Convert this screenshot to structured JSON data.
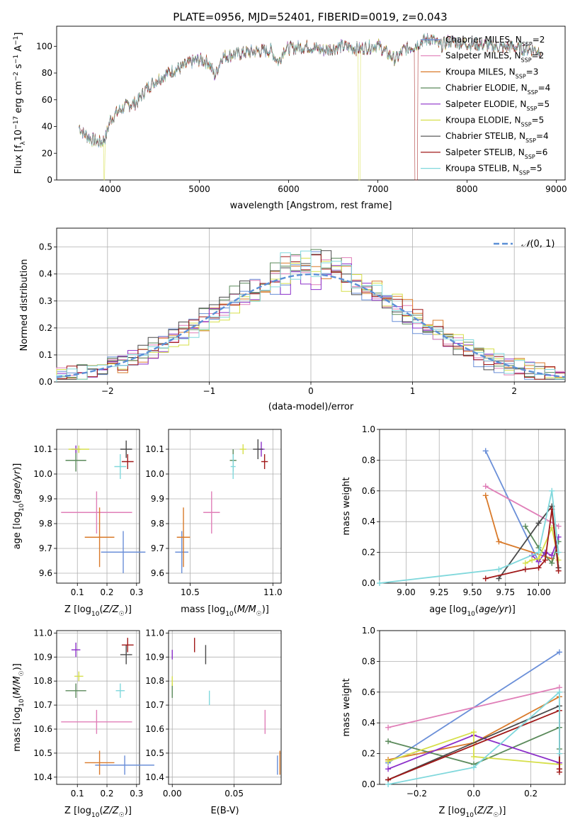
{
  "title": "PLATE=0956, MJD=52401, FIBERID=0019, z=0.043",
  "colors": {
    "chabrier_miles": "#6a8fd8",
    "salpeter_miles": "#e07fb8",
    "kroupa_miles": "#d97a2a",
    "chabrier_elodie": "#5b8a5b",
    "salpeter_elodie": "#8b2fc9",
    "kroupa_elodie": "#d6df4a",
    "chabrier_stelib": "#4a4a4a",
    "salpeter_stelib": "#a01818",
    "kroupa_stelib": "#80d8dc",
    "data": "#999999"
  },
  "legend": [
    {
      "label": "Chabrier MILES, N",
      "sub": "SSP",
      "suffix": "=2",
      "color_key": "chabrier_miles"
    },
    {
      "label": "Salpeter MILES, N",
      "sub": "SSP",
      "suffix": "=2",
      "color_key": "salpeter_miles"
    },
    {
      "label": "Kroupa MILES, N",
      "sub": "SSP",
      "suffix": "=3",
      "color_key": "kroupa_miles"
    },
    {
      "label": "Chabrier ELODIE, N",
      "sub": "SSP",
      "suffix": "=4",
      "color_key": "chabrier_elodie"
    },
    {
      "label": "Salpeter ELODIE, N",
      "sub": "SSP",
      "suffix": "=5",
      "color_key": "salpeter_elodie"
    },
    {
      "label": "Kroupa ELODIE, N",
      "sub": "SSP",
      "suffix": "=5",
      "color_key": "kroupa_elodie"
    },
    {
      "label": "Chabrier STELIB, N",
      "sub": "SSP",
      "suffix": "=4",
      "color_key": "chabrier_stelib"
    },
    {
      "label": "Salpeter STELIB, N",
      "sub": "SSP",
      "suffix": "=6",
      "color_key": "salpeter_stelib"
    },
    {
      "label": "Kroupa STELIB, N",
      "sub": "SSP",
      "suffix": "=5",
      "color_key": "kroupa_stelib"
    }
  ],
  "chart_data": [
    {
      "id": "spectrum",
      "type": "line",
      "xlabel": "wavelength [Angstrom, rest frame]",
      "ylabel": "Flux [f_λ 10^-17 erg cm^-2 s^-1 A^-1]",
      "xlim": [
        3400,
        9100
      ],
      "ylim": [
        0,
        115
      ],
      "xticks": [
        4000,
        5000,
        6000,
        7000,
        8000,
        9000
      ],
      "yticks": [
        0,
        20,
        40,
        60,
        80,
        100
      ],
      "grid": false,
      "legend_position": "right",
      "continuum": [
        [
          3650,
          40
        ],
        [
          3700,
          35
        ],
        [
          3800,
          30
        ],
        [
          3900,
          28
        ],
        [
          3950,
          32
        ],
        [
          4000,
          45
        ],
        [
          4100,
          52
        ],
        [
          4200,
          56
        ],
        [
          4300,
          58
        ],
        [
          4400,
          68
        ],
        [
          4500,
          74
        ],
        [
          4600,
          78
        ],
        [
          4700,
          82
        ],
        [
          4800,
          84
        ],
        [
          4900,
          88
        ],
        [
          5000,
          90
        ],
        [
          5100,
          88
        ],
        [
          5175,
          78
        ],
        [
          5250,
          92
        ],
        [
          5400,
          94
        ],
        [
          5600,
          96
        ],
        [
          5800,
          97
        ],
        [
          5890,
          88
        ],
        [
          5950,
          98
        ],
        [
          6200,
          100
        ],
        [
          6400,
          97
        ],
        [
          6600,
          100
        ],
        [
          6800,
          98
        ],
        [
          7000,
          101
        ],
        [
          7100,
          95
        ],
        [
          7200,
          90
        ],
        [
          7300,
          98
        ],
        [
          7400,
          100
        ],
        [
          7500,
          104
        ],
        [
          7600,
          106
        ],
        [
          7700,
          100
        ],
        [
          7800,
          104
        ],
        [
          8000,
          102
        ],
        [
          8200,
          101
        ],
        [
          8400,
          99
        ],
        [
          8500,
          100
        ],
        [
          8600,
          98
        ],
        [
          8700,
          98
        ],
        [
          8800,
          97
        ],
        [
          8830,
          97
        ]
      ],
      "dips": [
        {
          "series": "kroupa_elodie",
          "x": [
            3932,
            3938
          ]
        },
        {
          "series": "kroupa_elodie",
          "x": [
            6790,
            6798
          ]
        },
        {
          "series": "salpeter_stelib",
          "x": [
            7415,
            7425
          ]
        }
      ]
    },
    {
      "id": "residuals",
      "type": "histogram",
      "xlabel": "(data-model)/error",
      "ylabel": "Normed distribution",
      "xlim": [
        -2.5,
        2.5
      ],
      "ylim": [
        0,
        0.57
      ],
      "xticks": [
        -2,
        -1,
        0,
        1,
        2
      ],
      "yticks": [
        0.0,
        0.1,
        0.2,
        0.3,
        0.4,
        0.5
      ],
      "grid": true,
      "reference_label": "N(0,1)",
      "bin_width": 0.1
    },
    {
      "id": "age_vs_Z",
      "type": "errorbar",
      "xlabel": "Z [log10(Z/Z☉)]",
      "ylabel": "age  [log10(age/yr)]",
      "xlim": [
        0.03,
        0.31
      ],
      "ylim": [
        9.56,
        10.18
      ],
      "xticks": [
        0.1,
        0.2,
        0.3
      ],
      "yticks": [
        9.6,
        9.7,
        9.8,
        9.9,
        10.0,
        10.1
      ],
      "grid": true,
      "points": [
        {
          "series": "chabrier_miles",
          "x": 0.255,
          "xerr": 0.075,
          "y": 9.685,
          "yerr": 0.085
        },
        {
          "series": "salpeter_miles",
          "x": 0.165,
          "xerr": 0.12,
          "y": 9.845,
          "yerr": 0.085
        },
        {
          "series": "kroupa_miles",
          "x": 0.175,
          "xerr": 0.05,
          "y": 9.745,
          "yerr": 0.12
        },
        {
          "series": "chabrier_elodie",
          "x": 0.095,
          "xerr": 0.035,
          "y": 10.055,
          "yerr": 0.045
        },
        {
          "series": "salpeter_elodie",
          "x": 0.095,
          "xerr": 0.015,
          "y": 10.1,
          "yerr": 0.015
        },
        {
          "series": "kroupa_elodie",
          "x": 0.105,
          "xerr": 0.035,
          "y": 10.1,
          "yerr": 0.015
        },
        {
          "series": "chabrier_stelib",
          "x": 0.265,
          "xerr": 0.02,
          "y": 10.1,
          "yerr": 0.035
        },
        {
          "series": "salpeter_stelib",
          "x": 0.27,
          "xerr": 0.02,
          "y": 10.05,
          "yerr": 0.03
        },
        {
          "series": "kroupa_stelib",
          "x": 0.245,
          "xerr": 0.02,
          "y": 10.03,
          "yerr": 0.05
        }
      ]
    },
    {
      "id": "age_vs_mass",
      "type": "errorbar",
      "xlabel": "mass [log10(M/M☉)]",
      "ylabel": "",
      "xlim": [
        10.37,
        11.05
      ],
      "ylim": [
        9.56,
        10.18
      ],
      "xticks": [
        10.5,
        11.0
      ],
      "yticks": [
        9.6,
        9.7,
        9.8,
        9.9,
        10.0,
        10.1
      ],
      "grid": true,
      "points": [
        {
          "series": "chabrier_miles",
          "x": 10.45,
          "xerr": 0.04,
          "y": 9.685,
          "yerr": 0.085
        },
        {
          "series": "salpeter_miles",
          "x": 10.63,
          "xerr": 0.05,
          "y": 9.845,
          "yerr": 0.085
        },
        {
          "series": "kroupa_miles",
          "x": 10.46,
          "xerr": 0.04,
          "y": 9.745,
          "yerr": 0.12
        },
        {
          "series": "chabrier_elodie",
          "x": 10.76,
          "xerr": 0.02,
          "y": 10.055,
          "yerr": 0.045
        },
        {
          "series": "salpeter_elodie",
          "x": 10.93,
          "xerr": 0.02,
          "y": 10.1,
          "yerr": 0.03
        },
        {
          "series": "kroupa_elodie",
          "x": 10.82,
          "xerr": 0.02,
          "y": 10.1,
          "yerr": 0.02
        },
        {
          "series": "chabrier_stelib",
          "x": 10.91,
          "xerr": 0.03,
          "y": 10.1,
          "yerr": 0.04
        },
        {
          "series": "salpeter_stelib",
          "x": 10.95,
          "xerr": 0.02,
          "y": 10.05,
          "yerr": 0.03
        },
        {
          "series": "kroupa_stelib",
          "x": 10.76,
          "xerr": 0.015,
          "y": 10.03,
          "yerr": 0.05
        }
      ]
    },
    {
      "id": "weight_vs_age",
      "type": "line",
      "xlabel": "age  [log10(age/yr)]",
      "ylabel": "mass weight",
      "xlim": [
        8.8,
        10.2
      ],
      "ylim": [
        0,
        1.0
      ],
      "xticks": [
        9.0,
        9.25,
        9.5,
        9.75,
        10.0
      ],
      "yticks": [
        0.0,
        0.2,
        0.4,
        0.6,
        0.8,
        1.0
      ],
      "grid": true,
      "series": [
        {
          "series": "chabrier_miles",
          "points": [
            [
              9.6,
              0.86
            ],
            [
              10.0,
              0.14
            ]
          ]
        },
        {
          "series": "salpeter_miles",
          "points": [
            [
              9.6,
              0.63
            ],
            [
              10.15,
              0.37
            ]
          ]
        },
        {
          "series": "kroupa_miles",
          "points": [
            [
              9.6,
              0.57
            ],
            [
              9.7,
              0.27
            ],
            [
              10.1,
              0.16
            ]
          ]
        },
        {
          "series": "chabrier_elodie",
          "points": [
            [
              9.9,
              0.37
            ],
            [
              10.0,
              0.23
            ],
            [
              10.1,
              0.13
            ],
            [
              10.15,
              0.27
            ]
          ]
        },
        {
          "series": "salpeter_elodie",
          "points": [
            [
              9.95,
              0.18
            ],
            [
              10.0,
              0.14
            ],
            [
              10.05,
              0.2
            ],
            [
              10.1,
              0.18
            ],
            [
              10.15,
              0.3
            ]
          ]
        },
        {
          "series": "kroupa_elodie",
          "points": [
            [
              9.9,
              0.13
            ],
            [
              9.95,
              0.15
            ],
            [
              10.0,
              0.16
            ],
            [
              10.1,
              0.36
            ],
            [
              10.15,
              0.15
            ]
          ]
        },
        {
          "series": "chabrier_stelib",
          "points": [
            [
              9.7,
              0.03
            ],
            [
              10.0,
              0.39
            ],
            [
              10.1,
              0.5
            ],
            [
              10.15,
              0.1
            ]
          ]
        },
        {
          "series": "salpeter_stelib",
          "points": [
            [
              9.6,
              0.03
            ],
            [
              9.9,
              0.09
            ],
            [
              10.0,
              0.1
            ],
            [
              10.05,
              0.15
            ],
            [
              10.1,
              0.48
            ],
            [
              10.15,
              0.08
            ]
          ]
        },
        {
          "series": "kroupa_stelib",
          "points": [
            [
              8.8,
              0.0
            ],
            [
              9.7,
              0.09
            ],
            [
              10.0,
              0.2
            ],
            [
              10.1,
              0.6
            ],
            [
              10.15,
              0.2
            ]
          ]
        }
      ]
    },
    {
      "id": "mass_vs_Z",
      "type": "errorbar",
      "xlabel": "Z [log10(Z/Z☉)]",
      "ylabel": "mass [log10(M/M☉)]",
      "xlim": [
        0.03,
        0.31
      ],
      "ylim": [
        10.37,
        11.01
      ],
      "xticks": [
        0.1,
        0.2,
        0.3
      ],
      "yticks": [
        10.4,
        10.5,
        10.6,
        10.7,
        10.8,
        10.9,
        11.0
      ],
      "grid": true,
      "points": [
        {
          "series": "chabrier_miles",
          "x": 0.26,
          "xerr": 0.1,
          "y": 10.45,
          "yerr": 0.04
        },
        {
          "series": "salpeter_miles",
          "x": 0.165,
          "xerr": 0.12,
          "y": 10.63,
          "yerr": 0.05
        },
        {
          "series": "kroupa_miles",
          "x": 0.175,
          "xerr": 0.05,
          "y": 10.46,
          "yerr": 0.05
        },
        {
          "series": "chabrier_elodie",
          "x": 0.095,
          "xerr": 0.035,
          "y": 10.76,
          "yerr": 0.03
        },
        {
          "series": "salpeter_elodie",
          "x": 0.095,
          "xerr": 0.015,
          "y": 10.93,
          "yerr": 0.03
        },
        {
          "series": "kroupa_elodie",
          "x": 0.105,
          "xerr": 0.015,
          "y": 10.82,
          "yerr": 0.02
        },
        {
          "series": "chabrier_stelib",
          "x": 0.265,
          "xerr": 0.02,
          "y": 10.91,
          "yerr": 0.04
        },
        {
          "series": "salpeter_stelib",
          "x": 0.27,
          "xerr": 0.02,
          "y": 10.95,
          "yerr": 0.03
        },
        {
          "series": "kroupa_stelib",
          "x": 0.245,
          "xerr": 0.015,
          "y": 10.76,
          "yerr": 0.03
        }
      ]
    },
    {
      "id": "mass_vs_ebv",
      "type": "errorbar",
      "xlabel": "E(B-V)",
      "ylabel": "",
      "xlim": [
        -0.003,
        0.088
      ],
      "ylim": [
        10.37,
        11.01
      ],
      "xticks": [
        0.0,
        0.05
      ],
      "yticks": [
        10.4,
        10.5,
        10.6,
        10.7,
        10.8,
        10.9,
        11.0
      ],
      "grid": true,
      "points": [
        {
          "series": "chabrier_miles",
          "x": 0.085,
          "xerr": 0,
          "y": 10.45,
          "yerr": 0.04
        },
        {
          "series": "salpeter_miles",
          "x": 0.075,
          "xerr": 0,
          "y": 10.63,
          "yerr": 0.05
        },
        {
          "series": "kroupa_miles",
          "x": 0.087,
          "xerr": 0,
          "y": 10.46,
          "yerr": 0.05
        },
        {
          "series": "chabrier_elodie",
          "x": 0.0,
          "xerr": 0,
          "y": 10.76,
          "yerr": 0.03
        },
        {
          "series": "salpeter_elodie",
          "x": 0.0,
          "xerr": 0,
          "y": 10.91,
          "yerr": 0.02
        },
        {
          "series": "kroupa_elodie",
          "x": 0.0,
          "xerr": 0,
          "y": 10.8,
          "yerr": 0.02
        },
        {
          "series": "chabrier_stelib",
          "x": 0.027,
          "xerr": 0,
          "y": 10.91,
          "yerr": 0.04
        },
        {
          "series": "salpeter_stelib",
          "x": 0.018,
          "xerr": 0,
          "y": 10.95,
          "yerr": 0.03
        },
        {
          "series": "kroupa_stelib",
          "x": 0.03,
          "xerr": 0,
          "y": 10.73,
          "yerr": 0.03
        }
      ]
    },
    {
      "id": "weight_vs_Z",
      "type": "line",
      "xlabel": "Z [log10(Z/Z☉)]",
      "ylabel": "mass weight",
      "xlim": [
        -0.33,
        0.32
      ],
      "ylim": [
        0,
        1.0
      ],
      "xticks": [
        -0.2,
        0.0,
        0.2
      ],
      "yticks": [
        0.0,
        0.2,
        0.4,
        0.6,
        0.8,
        1.0
      ],
      "grid": true,
      "series": [
        {
          "series": "chabrier_miles",
          "points": [
            [
              -0.3,
              0.14
            ],
            [
              0.3,
              0.86
            ]
          ]
        },
        {
          "series": "salpeter_miles",
          "points": [
            [
              -0.3,
              0.37
            ],
            [
              0.3,
              0.63
            ]
          ]
        },
        {
          "series": "kroupa_miles",
          "points": [
            [
              -0.3,
              0.16
            ],
            [
              0.0,
              0.27
            ],
            [
              0.3,
              0.57
            ]
          ]
        },
        {
          "series": "chabrier_elodie",
          "points": [
            [
              -0.3,
              0.28
            ],
            [
              0.0,
              0.13
            ],
            [
              0.3,
              0.37
            ],
            [
              0.3,
              0.23
            ]
          ]
        },
        {
          "series": "salpeter_elodie",
          "points": [
            [
              -0.3,
              0.1
            ],
            [
              0.0,
              0.32
            ],
            [
              0.3,
              0.14
            ]
          ]
        },
        {
          "series": "kroupa_elodie",
          "points": [
            [
              -0.3,
              0.15
            ],
            [
              0.0,
              0.34
            ],
            [
              0.0,
              0.18
            ],
            [
              0.3,
              0.13
            ]
          ]
        },
        {
          "series": "chabrier_stelib",
          "points": [
            [
              -0.3,
              0.03
            ],
            [
              0.3,
              0.51
            ],
            [
              0.3,
              0.1
            ]
          ]
        },
        {
          "series": "salpeter_stelib",
          "points": [
            [
              -0.3,
              0.03
            ],
            [
              0.3,
              0.48
            ],
            [
              0.3,
              0.1
            ],
            [
              0.3,
              0.08
            ]
          ]
        },
        {
          "series": "kroupa_stelib",
          "points": [
            [
              -0.3,
              0.0
            ],
            [
              0.0,
              0.11
            ],
            [
              0.3,
              0.6
            ],
            [
              0.3,
              0.2
            ]
          ]
        }
      ]
    }
  ]
}
